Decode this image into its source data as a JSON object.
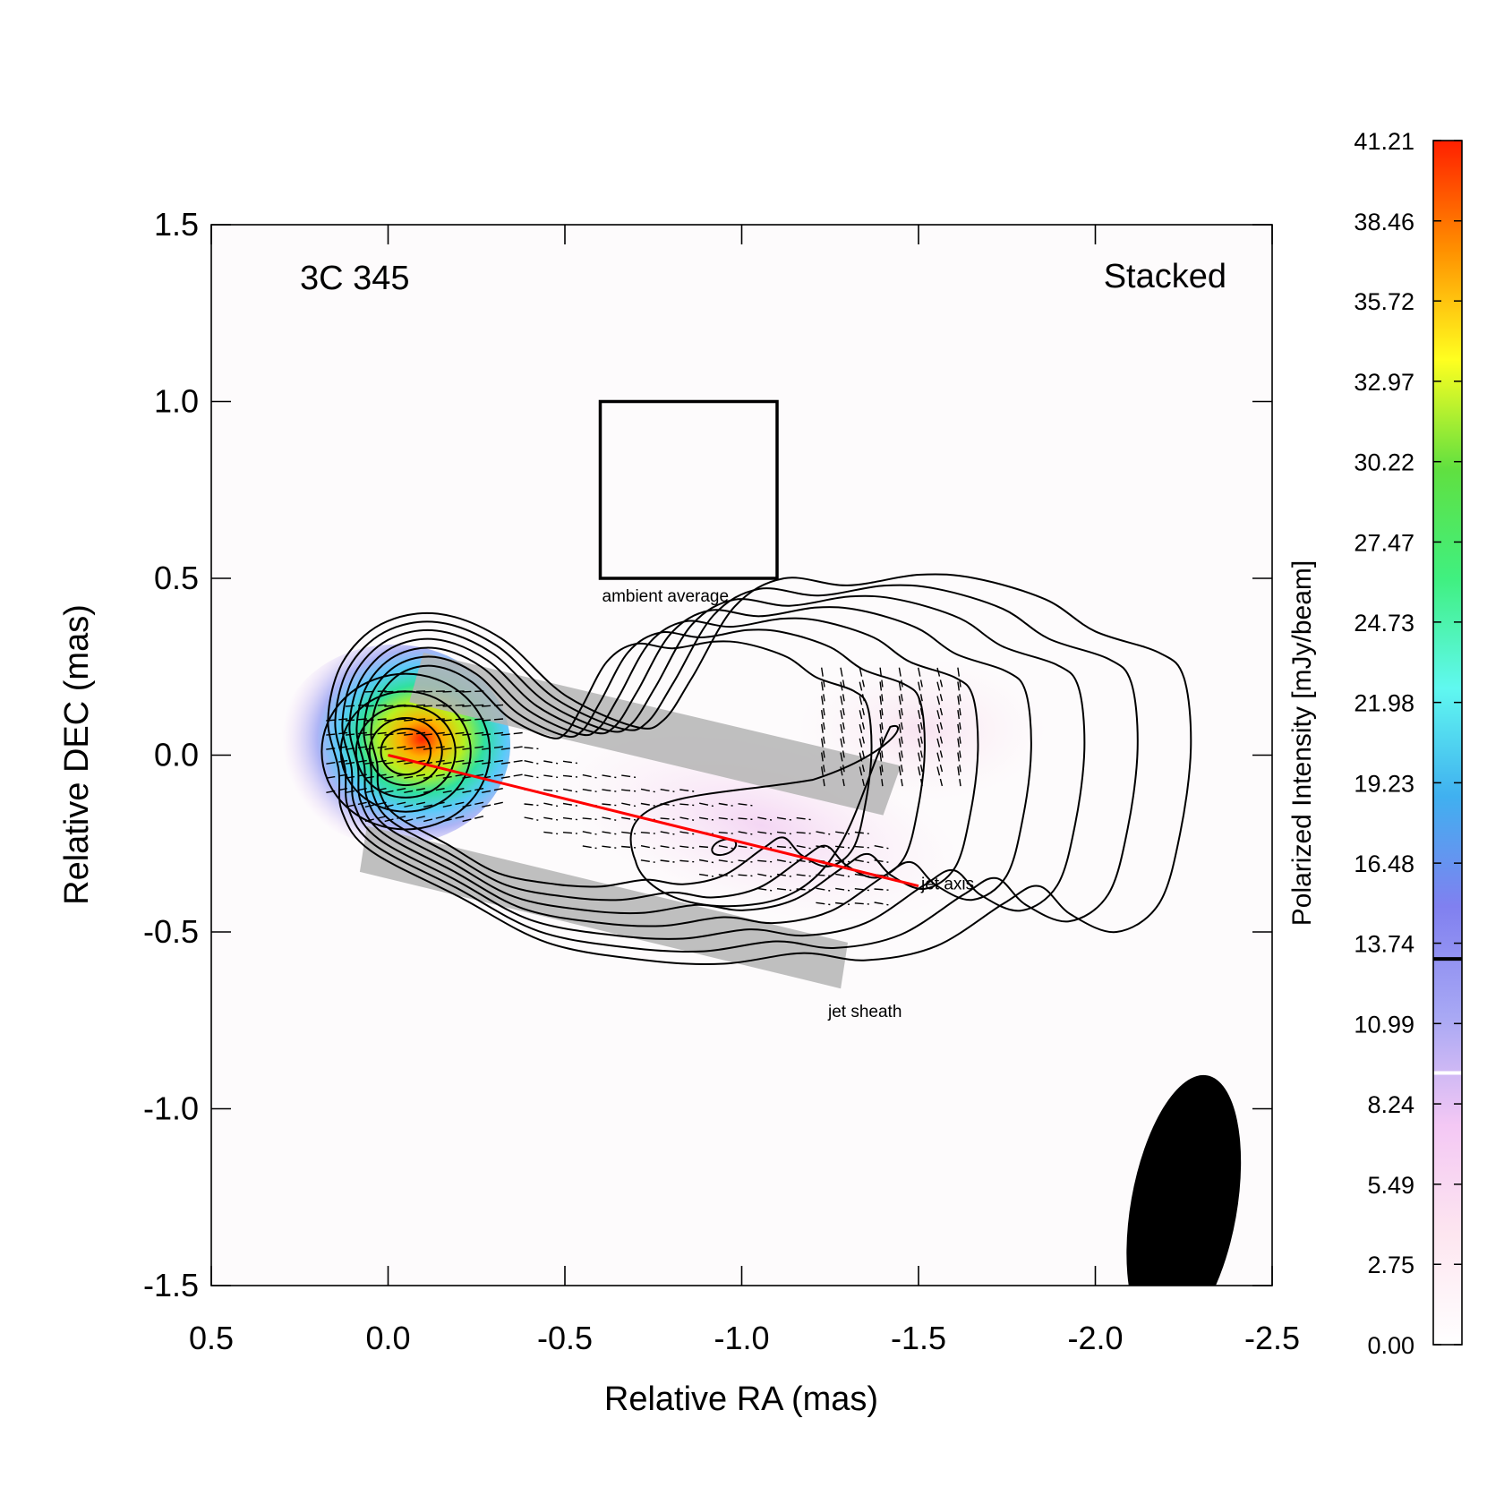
{
  "chart_data": {
    "type": "contour-polarization-map",
    "source_label": "3C 345",
    "mode_label": "Stacked",
    "xlabel": "Relative RA (mas)",
    "ylabel": "Relative DEC (mas)",
    "xlim": [
      0.5,
      -2.5
    ],
    "ylim": [
      -1.5,
      1.5
    ],
    "x_ticks": [
      0.5,
      0.0,
      -0.5,
      -1.0,
      -1.5,
      -2.0,
      -2.5
    ],
    "x_tick_labels": [
      "0.5",
      "0.0",
      "-0.5",
      "-1.0",
      "-1.5",
      "-2.0",
      "-2.5"
    ],
    "y_ticks": [
      1.5,
      1.0,
      0.5,
      0.0,
      -0.5,
      -1.0,
      -1.5
    ],
    "y_tick_labels": [
      "1.5",
      "1.0",
      "0.5",
      "0.0",
      "-0.5",
      "-1.0",
      "-1.5"
    ],
    "colorbar": {
      "label": "Polarized Intensity [mJy/beam]",
      "min": 0.0,
      "max": 41.21,
      "ticks": [
        41.21,
        38.46,
        35.72,
        32.97,
        30.22,
        27.47,
        24.73,
        21.98,
        19.23,
        16.48,
        13.74,
        10.99,
        8.24,
        5.49,
        2.75,
        0.0
      ],
      "tick_labels": [
        "41.21",
        "38.46",
        "35.72",
        "32.97",
        "30.22",
        "27.47",
        "24.73",
        "21.98",
        "19.23",
        "16.48",
        "13.74",
        "10.99",
        "8.24",
        "5.49",
        "2.75",
        "0.00"
      ],
      "marker_black": 13.2,
      "marker_white": 9.3
    },
    "jet_axis": {
      "label": "jet axis",
      "color": "#ff0000",
      "from": [
        0.0,
        0.0
      ],
      "to": [
        -1.5,
        -0.37
      ]
    },
    "ambient_box": {
      "label": "ambient average",
      "ra": [
        -0.6,
        -1.1
      ],
      "dec": [
        0.5,
        1.0
      ]
    },
    "sheath_label": "jet sheath",
    "sheath_regions": [
      {
        "corners": [
          [
            -0.1,
            0.29
          ],
          [
            -1.45,
            -0.03
          ],
          [
            -1.4,
            -0.17
          ],
          [
            -0.06,
            0.15
          ]
        ]
      },
      {
        "corners": [
          [
            0.06,
            -0.2
          ],
          [
            -1.3,
            -0.53
          ],
          [
            -1.28,
            -0.66
          ],
          [
            0.08,
            -0.33
          ]
        ]
      }
    ],
    "core_peak": {
      "ra": -0.1,
      "dec": 0.0,
      "value": 41.21
    },
    "beam": {
      "ra": -2.25,
      "dec": -1.28,
      "major": 0.38,
      "minor": 0.15,
      "pa_deg": 10
    },
    "contour_scales": [
      1.0,
      0.93,
      0.86,
      0.79,
      0.72,
      0.65,
      0.58
    ],
    "core_contour_radii": [
      0.22,
      0.17,
      0.13,
      0.095,
      0.065
    ],
    "colors": {
      "stops": [
        "#ffffff",
        "#fde6f0",
        "#f4c8f4",
        "#a8a8f4",
        "#8080f0",
        "#40b0f0",
        "#60f8f0",
        "#40f080",
        "#60e040",
        "#ffff20",
        "#ff9000",
        "#ff2000"
      ],
      "sheath": "#b4b4b4",
      "plot_background": "#fdfbfc"
    }
  }
}
